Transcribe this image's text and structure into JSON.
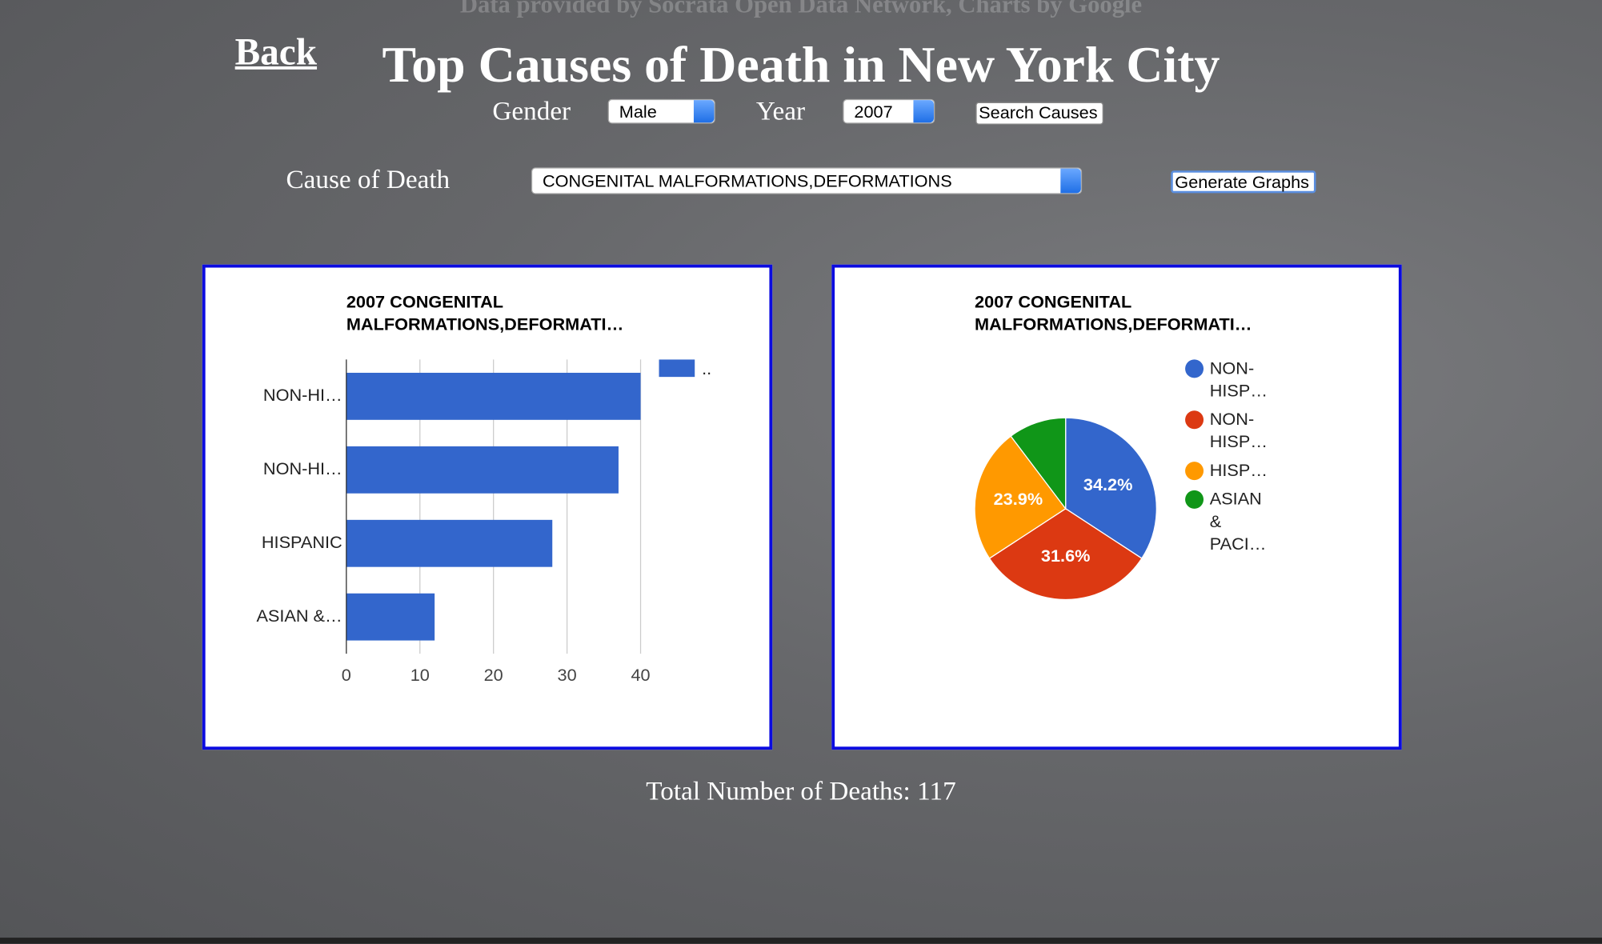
{
  "header": {
    "credit": "Data provided by Socrata Open Data Network, Charts by Google",
    "back": "Back",
    "title": "Top Causes of Death in New York City"
  },
  "form": {
    "gender_label": "Gender",
    "gender": "Male",
    "year_label": "Year",
    "year": "2007",
    "search_button": "Search Causes",
    "cause_label": "Cause of Death",
    "cause": "CONGENITAL MALFORMATIONS,DEFORMATIONS",
    "generate_button": "Generate Graphs"
  },
  "chart_data": [
    {
      "type": "bar",
      "orientation": "horizontal",
      "title": "2007 CONGENITAL MALFORMATIONS,DEFORMATI…",
      "categories": [
        "NON-HI…",
        "NON-HI…",
        "HISPANIC",
        "ASIAN &…"
      ],
      "series": [
        {
          "name": "..",
          "color": "#3366cc",
          "values": [
            40,
            37,
            28,
            12
          ]
        }
      ],
      "xlim": [
        0,
        40
      ],
      "xticks": [
        0,
        10,
        20,
        30,
        40
      ],
      "grid": true,
      "legend": "right"
    },
    {
      "type": "pie",
      "title": "2007 CONGENITAL MALFORMATIONS,DEFORMATI…",
      "categories": [
        "NON-HISP…",
        "NON-HISP…",
        "HISP…",
        "ASIAN & PACI…"
      ],
      "colors": [
        "#3366cc",
        "#dc3912",
        "#ff9900",
        "#109618"
      ],
      "values": [
        34.2,
        31.6,
        23.9,
        10.3
      ],
      "value_labels": [
        "34.2%",
        "31.6%",
        "23.9%",
        null
      ],
      "legend": "right"
    }
  ],
  "footer": {
    "total_label": "Total Number of Deaths:",
    "total": 117
  }
}
